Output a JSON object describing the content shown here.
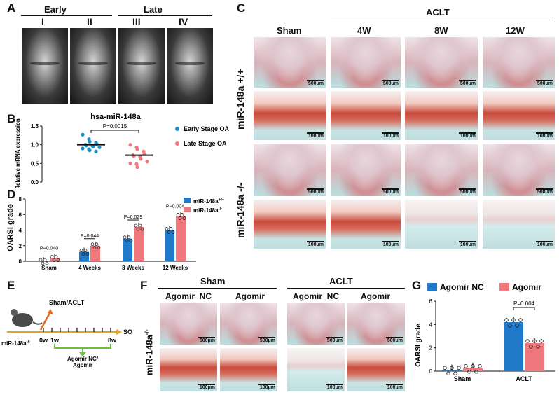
{
  "panels": {
    "A": "A",
    "B": "B",
    "C": "C",
    "D": "D",
    "E": "E",
    "F": "F",
    "G": "G"
  },
  "panelA": {
    "early": "Early",
    "late": "Late",
    "stages": [
      "I",
      "II",
      "III",
      "IV"
    ]
  },
  "panelB": {
    "chart_data": {
      "type": "scatter",
      "title": "hsa-miR-148a",
      "ylabel": "Relative mRNA expression",
      "ylim": [
        0,
        1.5
      ],
      "yticks": [
        "0.0",
        "0.5",
        "1.0",
        "1.5"
      ],
      "annotation": "P=0.0015",
      "series": [
        {
          "name": "Early Stage OA",
          "color": "#1f8fc8",
          "mean": 1.0,
          "values": [
            1.27,
            1.15,
            1.08,
            1.05,
            1.02,
            1.0,
            0.98,
            0.97,
            0.95,
            0.93,
            0.9,
            0.88,
            0.85,
            0.82
          ]
        },
        {
          "name": "Late Stage OA",
          "color": "#f0787c",
          "mean": 0.72,
          "values": [
            1.0,
            0.93,
            0.88,
            0.82,
            0.75,
            0.72,
            0.7,
            0.68,
            0.62,
            0.55,
            0.5,
            0.48,
            0.4
          ]
        }
      ]
    }
  },
  "panelC": {
    "aclt": "ACLT",
    "cols": [
      "Sham",
      "4W",
      "8W",
      "12W"
    ],
    "row1": "miR-148a +/+",
    "row2": "miR-148a -/-",
    "scale_big": "500μm",
    "scale_small": "100μm"
  },
  "panelD": {
    "chart_data": {
      "type": "bar",
      "ylabel": "OARSI grade",
      "ylim": [
        0,
        8
      ],
      "yticks": [
        "0",
        "2",
        "4",
        "6",
        "8"
      ],
      "categories": [
        "Sham",
        "4 Weeks",
        "8 Weeks",
        "12 Weeks"
      ],
      "series": [
        {
          "name": "miR-148a+/+",
          "color": "#1f78c8",
          "values": [
            0.0,
            1.2,
            2.9,
            4.0
          ]
        },
        {
          "name": "miR-148a-/-",
          "color": "#f0787c",
          "values": [
            0.4,
            2.0,
            4.4,
            5.8
          ]
        }
      ],
      "annotations": [
        "P=0.040",
        "P=0.044",
        "P=0.029",
        "P=0.004"
      ],
      "legend": [
        "miR-148a",
        "miR-148a"
      ],
      "legend_sup": [
        "+/+",
        "-/-"
      ]
    }
  },
  "panelE": {
    "sham_aclt": "Sham/ACLT",
    "so": "SO",
    "strain": "miR-148a",
    "strain_sup": "-/-",
    "t0": "0w",
    "t1": "1w",
    "t8": "8w",
    "treat": "Agomir NC/",
    "treat2": "Agomir"
  },
  "panelF": {
    "sham": "Sham",
    "aclt": "ACLT",
    "cols": [
      "Agomir  NC",
      "Agomir",
      "Agomir  NC",
      "Agomir"
    ],
    "row": "miR-148a",
    "row_sup": "-/-",
    "scale_big": "500μm",
    "scale_small": "100μm"
  },
  "panelG": {
    "chart_data": {
      "type": "bar",
      "ylabel": "OARSI grade",
      "ylim": [
        0,
        6
      ],
      "yticks": [
        "0",
        "2",
        "4",
        "6"
      ],
      "categories": [
        "Sham",
        "ACLT"
      ],
      "series": [
        {
          "name": "Agomir NC",
          "color": "#1f78c8",
          "values": [
            0.1,
            4.2
          ]
        },
        {
          "name": "Agomir",
          "color": "#f0787c",
          "values": [
            0.25,
            2.4
          ]
        }
      ],
      "annotation": "P=0.004"
    }
  }
}
